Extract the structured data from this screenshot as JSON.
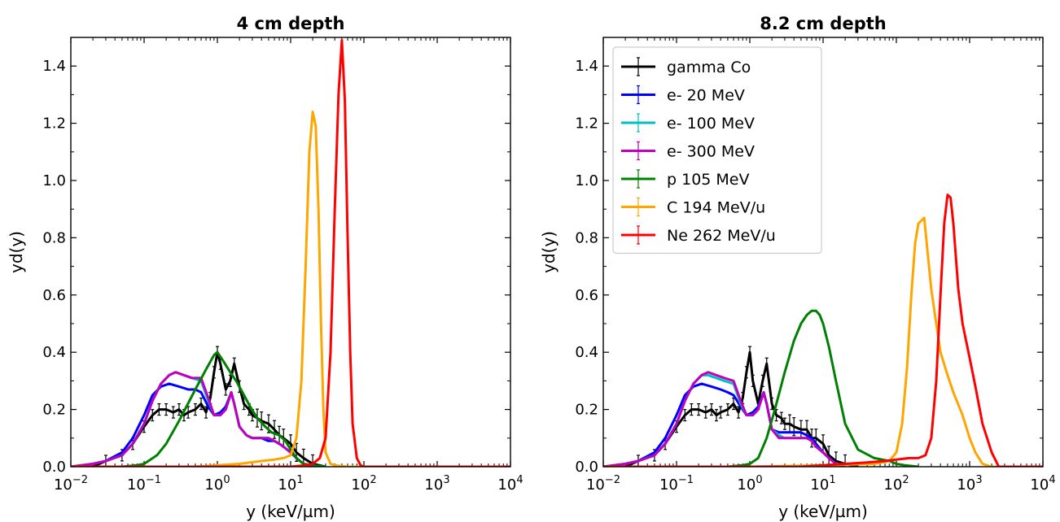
{
  "chart_data": [
    {
      "type": "line",
      "title": "4 cm depth",
      "xlabel": "y (keV/µm)",
      "ylabel": "yd(y)",
      "xscale": "log",
      "xlim": [
        0.01,
        10000
      ],
      "ylim": [
        0,
        1.5
      ],
      "xtick_labels": [
        {
          "base": "10",
          "exp": "−2",
          "value": 0.01
        },
        {
          "base": "10",
          "exp": "−1",
          "value": 0.1
        },
        {
          "base": "10",
          "exp": "0",
          "value": 1
        },
        {
          "base": "10",
          "exp": "1",
          "value": 10
        },
        {
          "base": "10",
          "exp": "2",
          "value": 100
        },
        {
          "base": "10",
          "exp": "3",
          "value": 1000
        },
        {
          "base": "10",
          "exp": "4",
          "value": 10000
        }
      ],
      "ytick_labels": [
        "0.0",
        "0.2",
        "0.4",
        "0.6",
        "0.8",
        "1.0",
        "1.2",
        "1.4"
      ],
      "ytick_values": [
        0,
        0.2,
        0.4,
        0.6,
        0.8,
        1.0,
        1.2,
        1.4
      ],
      "grid": false,
      "legend": null,
      "series": [
        {
          "key": "gamma",
          "color": "#000000",
          "errorbars": true,
          "x": [
            0.02,
            0.03,
            0.05,
            0.07,
            0.1,
            0.13,
            0.16,
            0.2,
            0.25,
            0.3,
            0.35,
            0.4,
            0.5,
            0.6,
            0.7,
            0.8,
            0.9,
            1.0,
            1.1,
            1.3,
            1.5,
            1.7,
            2.0,
            2.3,
            2.7,
            3.0,
            3.5,
            4.0,
            5.0,
            6.0,
            7.0,
            8.0,
            10,
            12,
            15,
            20,
            30
          ],
          "y": [
            0.0,
            0.02,
            0.04,
            0.08,
            0.14,
            0.18,
            0.2,
            0.2,
            0.19,
            0.2,
            0.18,
            0.19,
            0.2,
            0.22,
            0.19,
            0.24,
            0.33,
            0.4,
            0.36,
            0.27,
            0.3,
            0.36,
            0.28,
            0.22,
            0.2,
            0.18,
            0.17,
            0.16,
            0.15,
            0.13,
            0.11,
            0.1,
            0.08,
            0.05,
            0.03,
            0.01,
            0.0
          ]
        },
        {
          "key": "e20",
          "color": "#0000ff",
          "errorbars": false,
          "x": [
            0.01,
            0.02,
            0.03,
            0.05,
            0.07,
            0.1,
            0.13,
            0.17,
            0.22,
            0.3,
            0.4,
            0.5,
            0.6,
            0.75,
            0.9,
            1.1,
            1.3,
            1.55,
            1.7,
            2.0,
            2.5,
            3.0,
            4.0,
            5.0,
            6.0,
            7.0,
            8.0,
            10,
            12,
            15,
            20
          ],
          "y": [
            0.0,
            0.01,
            0.02,
            0.05,
            0.1,
            0.18,
            0.25,
            0.28,
            0.29,
            0.28,
            0.27,
            0.27,
            0.26,
            0.21,
            0.18,
            0.19,
            0.21,
            0.26,
            0.22,
            0.14,
            0.11,
            0.1,
            0.1,
            0.09,
            0.09,
            0.08,
            0.07,
            0.05,
            0.03,
            0.01,
            0.0
          ]
        },
        {
          "key": "e100",
          "color": "#00bfbf",
          "errorbars": false,
          "x": [
            0.01,
            0.02,
            0.03,
            0.05,
            0.07,
            0.1,
            0.13,
            0.17,
            0.22,
            0.27,
            0.35,
            0.45,
            0.6,
            0.75,
            0.9,
            1.1,
            1.3,
            1.55,
            1.7,
            2.0,
            2.5,
            3.0,
            4.0,
            5.0,
            6.0,
            7.0,
            8.0,
            10,
            12,
            15,
            20
          ],
          "y": [
            0.0,
            0.01,
            0.02,
            0.04,
            0.08,
            0.15,
            0.23,
            0.29,
            0.32,
            0.33,
            0.32,
            0.31,
            0.3,
            0.23,
            0.18,
            0.18,
            0.2,
            0.26,
            0.22,
            0.14,
            0.11,
            0.1,
            0.1,
            0.1,
            0.09,
            0.08,
            0.07,
            0.05,
            0.03,
            0.01,
            0.0
          ]
        },
        {
          "key": "e300",
          "color": "#bf00bf",
          "errorbars": false,
          "x": [
            0.01,
            0.02,
            0.03,
            0.05,
            0.07,
            0.1,
            0.13,
            0.17,
            0.22,
            0.27,
            0.35,
            0.45,
            0.6,
            0.75,
            0.9,
            1.1,
            1.3,
            1.55,
            1.7,
            2.0,
            2.5,
            3.0,
            4.0,
            5.0,
            6.0,
            7.0,
            8.0,
            10,
            12,
            15,
            20
          ],
          "y": [
            0.0,
            0.01,
            0.02,
            0.04,
            0.08,
            0.15,
            0.23,
            0.29,
            0.32,
            0.33,
            0.32,
            0.31,
            0.31,
            0.24,
            0.18,
            0.18,
            0.2,
            0.26,
            0.22,
            0.14,
            0.11,
            0.1,
            0.1,
            0.1,
            0.09,
            0.08,
            0.07,
            0.05,
            0.03,
            0.01,
            0.0
          ]
        },
        {
          "key": "p105",
          "color": "#008000",
          "errorbars": false,
          "x": [
            0.01,
            0.05,
            0.08,
            0.1,
            0.15,
            0.2,
            0.3,
            0.5,
            0.7,
            0.9,
            1.0,
            1.2,
            1.5,
            1.8,
            2.2,
            2.8,
            3.5,
            4.5,
            5.5,
            7.0,
            8.5,
            10,
            12,
            15,
            20,
            30
          ],
          "y": [
            0.0,
            0.0,
            0.005,
            0.01,
            0.04,
            0.08,
            0.16,
            0.27,
            0.34,
            0.39,
            0.4,
            0.37,
            0.33,
            0.3,
            0.26,
            0.21,
            0.17,
            0.14,
            0.12,
            0.11,
            0.09,
            0.06,
            0.03,
            0.01,
            0.005,
            0.0
          ]
        },
        {
          "key": "c194",
          "color": "#ffa500",
          "errorbars": false,
          "x": [
            0.01,
            0.5,
            1.0,
            2.0,
            4.0,
            6.0,
            8.0,
            10,
            12,
            14,
            16,
            18,
            20,
            22,
            24,
            26,
            28,
            30,
            35,
            40,
            60,
            100,
            1000,
            10000
          ],
          "y": [
            0.0,
            0.0,
            0.005,
            0.01,
            0.02,
            0.025,
            0.03,
            0.04,
            0.1,
            0.3,
            0.7,
            1.1,
            1.24,
            1.19,
            0.9,
            0.5,
            0.2,
            0.05,
            0.01,
            0.005,
            0.0,
            0.0,
            0.0,
            0.0
          ]
        },
        {
          "key": "ne262",
          "color": "#ff0000",
          "errorbars": false,
          "x": [
            0.01,
            2.0,
            10,
            16,
            20,
            25,
            30,
            35,
            40,
            45,
            50,
            55,
            60,
            65,
            70,
            80,
            90,
            100,
            1000,
            10000
          ],
          "y": [
            0.0,
            0.0,
            0.0,
            0.005,
            0.01,
            0.03,
            0.1,
            0.4,
            0.9,
            1.3,
            1.49,
            1.28,
            0.8,
            0.4,
            0.15,
            0.03,
            0.005,
            0.0,
            0.0,
            0.0
          ]
        }
      ]
    },
    {
      "type": "line",
      "title": "8.2 cm depth",
      "xlabel": "y (keV/µm)",
      "ylabel": "yd(y)",
      "xscale": "log",
      "xlim": [
        0.01,
        10000
      ],
      "ylim": [
        0,
        1.5
      ],
      "xtick_labels": [
        {
          "base": "10",
          "exp": "−2",
          "value": 0.01
        },
        {
          "base": "10",
          "exp": "−1",
          "value": 0.1
        },
        {
          "base": "10",
          "exp": "0",
          "value": 1
        },
        {
          "base": "10",
          "exp": "1",
          "value": 10
        },
        {
          "base": "10",
          "exp": "2",
          "value": 100
        },
        {
          "base": "10",
          "exp": "3",
          "value": 1000
        },
        {
          "base": "10",
          "exp": "4",
          "value": 10000
        }
      ],
      "ytick_labels": [
        "0.0",
        "0.2",
        "0.4",
        "0.6",
        "0.8",
        "1.0",
        "1.2",
        "1.4"
      ],
      "ytick_values": [
        0,
        0.2,
        0.4,
        0.6,
        0.8,
        1.0,
        1.2,
        1.4
      ],
      "grid": false,
      "legend": "top-left",
      "series": [
        {
          "key": "gamma",
          "name": "gamma Co",
          "color": "#000000",
          "errorbars": true,
          "x": [
            0.02,
            0.03,
            0.05,
            0.07,
            0.1,
            0.13,
            0.16,
            0.2,
            0.25,
            0.3,
            0.35,
            0.4,
            0.5,
            0.6,
            0.7,
            0.8,
            0.9,
            1.0,
            1.1,
            1.3,
            1.5,
            1.7,
            2.0,
            2.3,
            2.7,
            3.0,
            3.5,
            4.0,
            5.0,
            6.0,
            7.0,
            8.0,
            10,
            12,
            15,
            20,
            30
          ],
          "y": [
            0.0,
            0.02,
            0.04,
            0.08,
            0.14,
            0.18,
            0.2,
            0.2,
            0.19,
            0.2,
            0.18,
            0.19,
            0.2,
            0.22,
            0.19,
            0.24,
            0.33,
            0.4,
            0.3,
            0.22,
            0.3,
            0.36,
            0.22,
            0.18,
            0.17,
            0.15,
            0.15,
            0.14,
            0.13,
            0.13,
            0.1,
            0.1,
            0.08,
            0.04,
            0.02,
            0.01,
            0.0
          ]
        },
        {
          "key": "e20",
          "name": "e- 20 MeV",
          "color": "#0000ff",
          "errorbars": false,
          "x": [
            0.01,
            0.02,
            0.03,
            0.05,
            0.07,
            0.1,
            0.13,
            0.17,
            0.22,
            0.3,
            0.4,
            0.5,
            0.6,
            0.75,
            0.9,
            1.1,
            1.3,
            1.55,
            1.7,
            2.0,
            2.5,
            3.0,
            4.0,
            5.0,
            6.0,
            7.0,
            8.0,
            10,
            12,
            15,
            20
          ],
          "y": [
            0.0,
            0.01,
            0.02,
            0.05,
            0.1,
            0.18,
            0.25,
            0.28,
            0.29,
            0.28,
            0.27,
            0.26,
            0.25,
            0.21,
            0.18,
            0.19,
            0.21,
            0.26,
            0.22,
            0.13,
            0.12,
            0.12,
            0.12,
            0.12,
            0.11,
            0.1,
            0.08,
            0.05,
            0.03,
            0.01,
            0.0
          ]
        },
        {
          "key": "e100",
          "name": "e- 100 MeV",
          "color": "#00bfbf",
          "errorbars": false,
          "x": [
            0.01,
            0.02,
            0.03,
            0.05,
            0.07,
            0.1,
            0.13,
            0.17,
            0.22,
            0.27,
            0.35,
            0.45,
            0.6,
            0.75,
            0.9,
            1.1,
            1.3,
            1.55,
            1.7,
            2.0,
            2.5,
            3.0,
            4.0,
            5.0,
            6.0,
            7.0,
            8.0,
            10,
            12,
            15,
            20
          ],
          "y": [
            0.0,
            0.01,
            0.02,
            0.04,
            0.08,
            0.15,
            0.23,
            0.29,
            0.32,
            0.32,
            0.31,
            0.3,
            0.29,
            0.22,
            0.18,
            0.18,
            0.2,
            0.26,
            0.22,
            0.13,
            0.11,
            0.1,
            0.1,
            0.1,
            0.1,
            0.09,
            0.07,
            0.05,
            0.03,
            0.01,
            0.0
          ]
        },
        {
          "key": "e300",
          "name": "e- 300 MeV",
          "color": "#bf00bf",
          "errorbars": false,
          "x": [
            0.01,
            0.02,
            0.03,
            0.05,
            0.07,
            0.1,
            0.13,
            0.17,
            0.22,
            0.27,
            0.35,
            0.45,
            0.6,
            0.75,
            0.9,
            1.1,
            1.3,
            1.55,
            1.7,
            2.0,
            2.5,
            3.0,
            4.0,
            5.0,
            6.0,
            7.0,
            8.0,
            10,
            12,
            15,
            20
          ],
          "y": [
            0.0,
            0.01,
            0.02,
            0.04,
            0.08,
            0.15,
            0.23,
            0.29,
            0.32,
            0.33,
            0.32,
            0.31,
            0.3,
            0.23,
            0.18,
            0.18,
            0.2,
            0.26,
            0.22,
            0.13,
            0.1,
            0.1,
            0.1,
            0.1,
            0.1,
            0.09,
            0.07,
            0.05,
            0.03,
            0.01,
            0.0
          ]
        },
        {
          "key": "p105",
          "name": "p 105 MeV",
          "color": "#008000",
          "errorbars": false,
          "x": [
            0.01,
            0.1,
            0.5,
            0.8,
            1.0,
            1.3,
            1.7,
            2.2,
            3.0,
            4.0,
            5.0,
            6.0,
            7.0,
            8.0,
            9.0,
            10,
            12,
            15,
            20,
            30,
            50,
            80,
            100,
            130,
            200
          ],
          "y": [
            0.0,
            0.0,
            0.0,
            0.005,
            0.01,
            0.03,
            0.1,
            0.2,
            0.33,
            0.44,
            0.5,
            0.53,
            0.545,
            0.545,
            0.53,
            0.5,
            0.42,
            0.3,
            0.15,
            0.06,
            0.03,
            0.02,
            0.01,
            0.005,
            0.0
          ]
        },
        {
          "key": "c194",
          "name": "C 194 MeV/u",
          "color": "#ffa500",
          "errorbars": false,
          "x": [
            0.01,
            1.0,
            10,
            50,
            80,
            100,
            120,
            140,
            160,
            180,
            200,
            220,
            240,
            260,
            300,
            350,
            400,
            500,
            600,
            800,
            1000,
            1200,
            1500,
            2000,
            10000
          ],
          "y": [
            0.0,
            0.0,
            0.005,
            0.01,
            0.02,
            0.05,
            0.15,
            0.35,
            0.6,
            0.78,
            0.85,
            0.86,
            0.87,
            0.78,
            0.62,
            0.5,
            0.4,
            0.32,
            0.26,
            0.18,
            0.1,
            0.05,
            0.01,
            0.0,
            0.0
          ]
        },
        {
          "key": "ne262",
          "name": "Ne 262 MeV/u",
          "color": "#ff0000",
          "errorbars": false,
          "x": [
            0.01,
            5.0,
            10,
            20,
            40,
            70,
            100,
            150,
            200,
            250,
            300,
            350,
            400,
            450,
            500,
            550,
            600,
            700,
            800,
            1000,
            1200,
            1500,
            2000,
            2500,
            10000
          ],
          "y": [
            0.0,
            0.0,
            0.005,
            0.01,
            0.015,
            0.02,
            0.025,
            0.03,
            0.03,
            0.04,
            0.1,
            0.3,
            0.6,
            0.85,
            0.95,
            0.94,
            0.85,
            0.62,
            0.5,
            0.38,
            0.28,
            0.15,
            0.05,
            0.0,
            0.0
          ]
        }
      ]
    }
  ]
}
